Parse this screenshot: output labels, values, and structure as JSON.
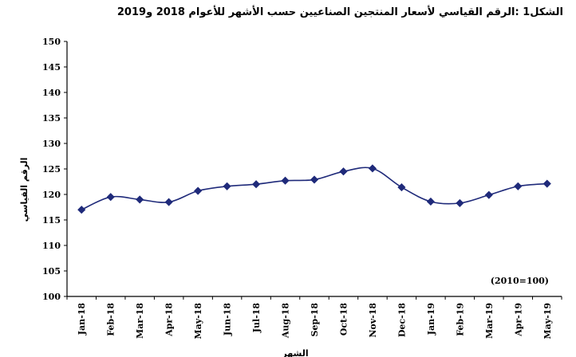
{
  "chart_data": {
    "type": "line",
    "title": "الشكل1 :الرقم القياسي لأسعار المنتجين الصناعيين حسب الأشهر للأعوام 2018 و2019",
    "ylabel": "الرقم القياسي",
    "xlabel": "الشهر",
    "note": "(2010=100)",
    "ylim": [
      100,
      150
    ],
    "yticks": [
      100,
      105,
      110,
      115,
      120,
      125,
      130,
      135,
      140,
      145,
      150
    ],
    "categories": [
      "Jan-18",
      "Feb-18",
      "Mar-18",
      "Apr-18",
      "May-18",
      "Jun-18",
      "Jul-18",
      "Aug-18",
      "Sep-18",
      "Oct-18",
      "Nov-18",
      "Dec-18",
      "Jan-19",
      "Feb-19",
      "Mar-19",
      "Apr-19",
      "May-19"
    ],
    "series": [
      {
        "values": [
          117.0,
          119.5,
          119.0,
          118.5,
          120.7,
          121.6,
          122.0,
          122.7,
          122.9,
          124.5,
          125.1,
          121.4,
          118.6,
          118.3,
          119.9,
          121.6,
          122.1
        ]
      }
    ],
    "grid": false,
    "line_color": "#1f2a7a",
    "marker": "diamond"
  }
}
